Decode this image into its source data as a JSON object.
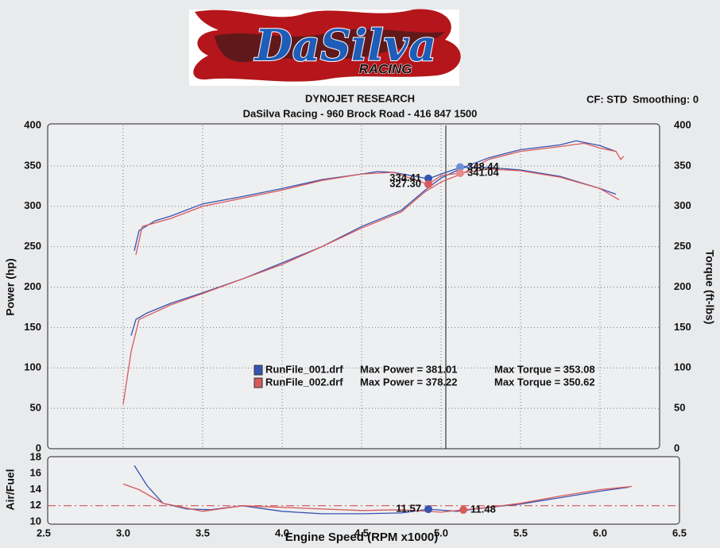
{
  "header": {
    "logo": "DaSilva",
    "logo_sub": "RACING",
    "title": "DYNOJET RESEARCH",
    "subtitle": "DaSilva Racing - 960 Brock Road - 416 847 1500",
    "cf": "CF: STD",
    "smoothing": "Smoothing: 0"
  },
  "chart_data": [
    {
      "type": "line",
      "y_label": "Power (hp)",
      "y2_label": "Torque (ft-lbs)",
      "xlim": [
        2.5,
        6.5
      ],
      "xticks": [
        3,
        3.5,
        4,
        4.5,
        5,
        5.5,
        6
      ],
      "ylim": [
        0,
        400
      ],
      "yticks": [
        0,
        50,
        100,
        150,
        200,
        250,
        300,
        350,
        400
      ],
      "y2lim": [
        0,
        400
      ],
      "y2ticks": [
        0,
        50,
        100,
        150,
        200,
        250,
        300,
        350,
        400
      ],
      "grid": true,
      "cursor": 5.03,
      "series": [
        {
          "name": "RunFile_001.drf",
          "legend_text": "Max Power = 381.01",
          "color": "#3553b0",
          "x": [
            3.05,
            3.08,
            3.15,
            3.3,
            3.5,
            3.75,
            4.0,
            4.25,
            4.5,
            4.75,
            4.9,
            5.0,
            5.14,
            5.3,
            5.5,
            5.75,
            5.85,
            6.0,
            6.1
          ],
          "values": [
            140,
            160,
            168,
            180,
            193,
            210,
            230,
            250,
            275,
            295,
            320,
            335,
            348,
            360,
            370,
            376,
            381,
            375,
            368
          ]
        },
        {
          "name": "RunFile_002.drf",
          "legend_text": "Max Power = 378.22",
          "color": "#d85a5a",
          "x": [
            3.0,
            3.05,
            3.1,
            3.3,
            3.5,
            3.75,
            4.0,
            4.25,
            4.5,
            4.75,
            4.9,
            5.0,
            5.14,
            5.3,
            5.5,
            5.75,
            5.9,
            6.0,
            6.1,
            6.13,
            6.15
          ],
          "values": [
            55,
            120,
            160,
            178,
            192,
            210,
            228,
            250,
            273,
            293,
            318,
            330,
            341,
            358,
            368,
            374,
            378,
            372,
            368,
            358,
            362
          ]
        },
        {
          "legend_text": "Max Torque = 353.08",
          "color": "#3553b0",
          "axis": "y2",
          "x": [
            3.07,
            3.1,
            3.2,
            3.3,
            3.5,
            3.75,
            4.0,
            4.25,
            4.5,
            4.6,
            4.7,
            4.92,
            5.0,
            5.12,
            5.3,
            5.5,
            5.75,
            6.0,
            6.1
          ],
          "values": [
            245,
            270,
            282,
            288,
            303,
            312,
            322,
            333,
            340,
            343,
            342,
            334,
            340,
            348,
            348,
            345,
            337,
            322,
            315
          ]
        },
        {
          "legend_text": "Max Torque = 350.62",
          "color": "#d85a5a",
          "axis": "y2",
          "x": [
            3.08,
            3.12,
            3.3,
            3.5,
            3.75,
            4.0,
            4.25,
            4.5,
            4.7,
            4.92,
            5.0,
            5.12,
            5.3,
            5.5,
            5.75,
            6.0,
            6.12
          ],
          "values": [
            240,
            275,
            285,
            300,
            310,
            320,
            332,
            340,
            342,
            327,
            338,
            341,
            346,
            344,
            336,
            322,
            308
          ]
        }
      ],
      "markers": [
        {
          "x": 4.92,
          "value": 334.41,
          "label": "334.41",
          "color": "#3553b0"
        },
        {
          "x": 4.92,
          "value": 327.3,
          "label": "327.30",
          "color": "#d85a5a"
        },
        {
          "x": 5.12,
          "value": 348.44,
          "label": "348.44",
          "color": "#6b8fd8"
        },
        {
          "x": 5.12,
          "value": 341.04,
          "label": "341.04",
          "color": "#e88a8a"
        }
      ]
    },
    {
      "type": "line",
      "y_label": "Air/Fuel",
      "x_label": "Engine Speed (RPM x1000)",
      "xlim": [
        2.5,
        6.5
      ],
      "xticks": [
        2.5,
        {
          "value": 3,
          "label": "3.0"
        },
        3.5,
        {
          "value": 4,
          "label": "4.0"
        },
        4.5,
        {
          "value": 5,
          "label": "5.0"
        },
        5.5,
        {
          "value": 6,
          "label": "6.0"
        },
        6.5
      ],
      "ylim": [
        10,
        18
      ],
      "yticks": [
        10,
        12,
        14,
        16,
        18
      ],
      "reference": 12,
      "series": [
        {
          "color": "#3553b0",
          "x": [
            3.07,
            3.15,
            3.25,
            3.4,
            3.55,
            3.75,
            4.0,
            4.25,
            4.5,
            4.75,
            4.92,
            5.1,
            5.3,
            5.5,
            5.75,
            6.0,
            6.18
          ],
          "values": [
            17,
            14.5,
            12.3,
            11.6,
            11.5,
            12,
            11.3,
            11,
            11,
            11.1,
            11.57,
            11.3,
            11.8,
            12.2,
            13,
            13.8,
            14.3
          ]
        },
        {
          "color": "#d85a5a",
          "x": [
            3.0,
            3.1,
            3.25,
            3.5,
            3.75,
            4.0,
            4.5,
            4.75,
            5.0,
            5.14,
            5.3,
            5.5,
            5.75,
            6.0,
            6.2
          ],
          "values": [
            14.7,
            14,
            12.3,
            11.3,
            12,
            11.8,
            11.4,
            11.5,
            11.2,
            11.48,
            11.8,
            12.3,
            13.2,
            14,
            14.4
          ]
        }
      ],
      "markers": [
        {
          "x": 4.92,
          "value": 11.57,
          "label": "11.57",
          "color": "#3553b0"
        },
        {
          "x": 5.14,
          "value": 11.48,
          "label": "11.48",
          "color": "#d85a5a"
        }
      ]
    }
  ]
}
